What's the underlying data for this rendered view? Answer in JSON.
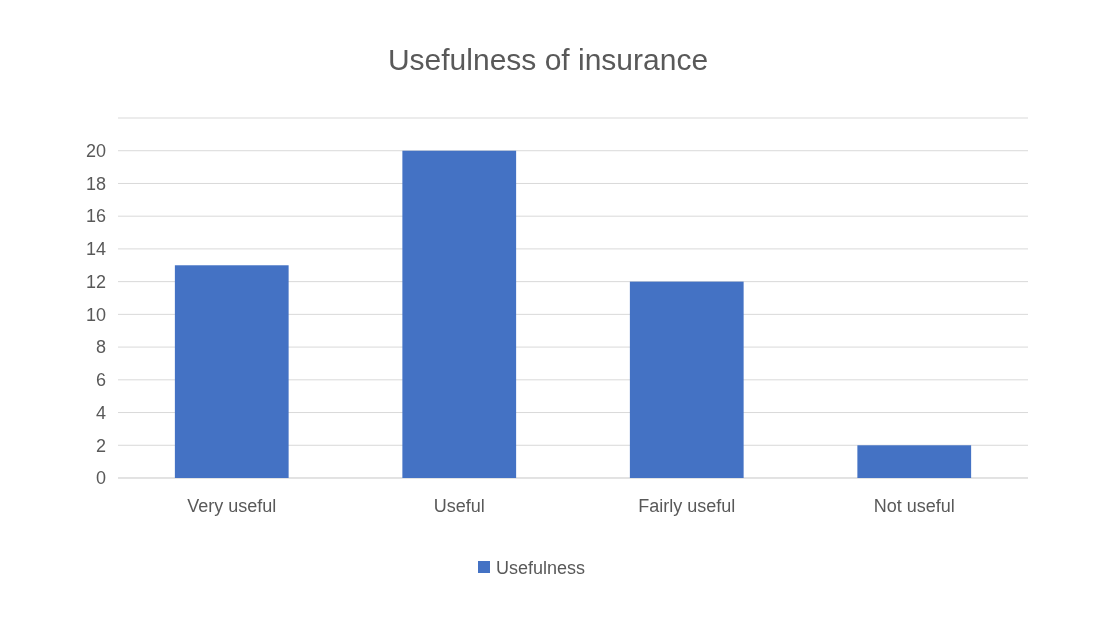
{
  "chart_data": {
    "type": "bar",
    "title": "Usefulness of  insurance",
    "categories": [
      "Very useful",
      "Useful",
      "Fairly useful",
      "Not useful"
    ],
    "series": [
      {
        "name": "Usefulness",
        "color": "#4472c4",
        "values": [
          13,
          20,
          12,
          2
        ]
      }
    ],
    "ylim": [
      0,
      22
    ],
    "yticks": [
      0,
      2,
      4,
      6,
      8,
      10,
      12,
      14,
      16,
      18,
      20
    ],
    "grid": true,
    "legend": "bottom"
  }
}
